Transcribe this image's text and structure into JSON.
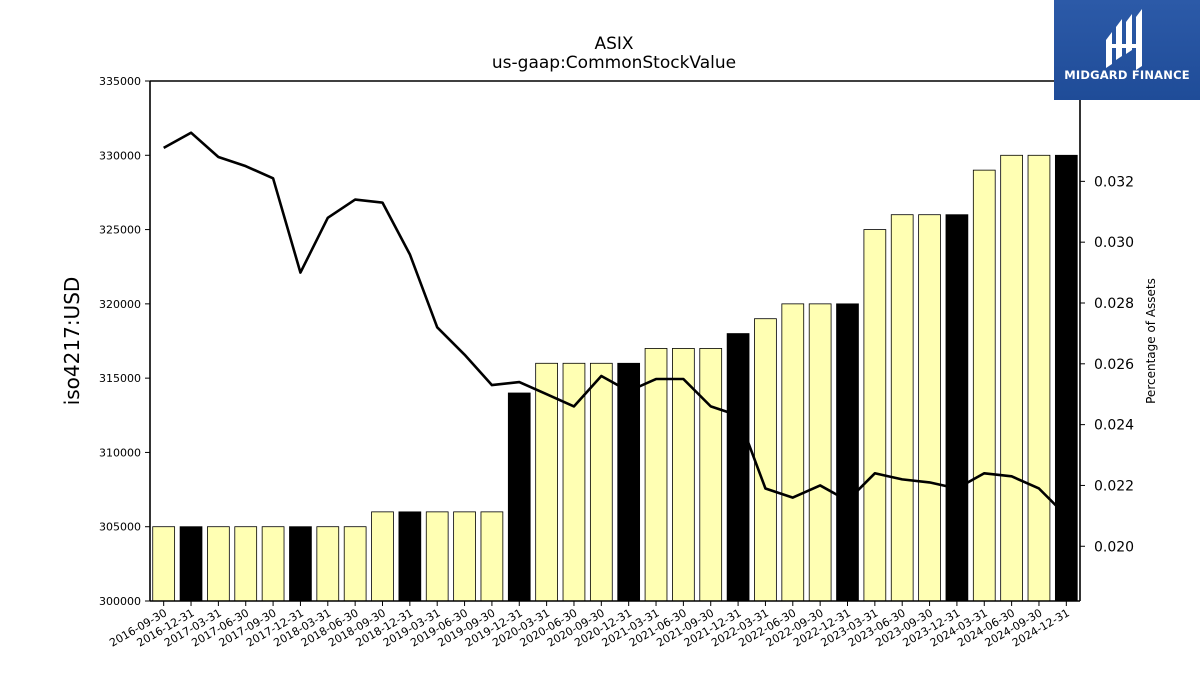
{
  "chart_data": {
    "type": "bar",
    "title": "ASIX",
    "subtitle": "us-gaap:CommonStockValue",
    "ylabel": "iso4217:USD",
    "y2label": "Percentage of Assets",
    "ylim": [
      300000,
      335000
    ],
    "y2lim": [
      0.0182,
      0.0353
    ],
    "yticks": [
      "300000",
      "305000",
      "310000",
      "315000",
      "320000",
      "325000",
      "330000",
      "335000"
    ],
    "y2ticks": [
      "0.020",
      "0.022",
      "0.024",
      "0.026",
      "0.028",
      "0.030",
      "0.032"
    ],
    "categories": [
      "2016-09-30",
      "2016-12-31",
      "2017-03-31",
      "2017-06-30",
      "2017-09-30",
      "2017-12-31",
      "2018-03-31",
      "2018-06-30",
      "2018-09-30",
      "2018-12-31",
      "2019-03-31",
      "2019-06-30",
      "2019-09-30",
      "2019-12-31",
      "2020-03-31",
      "2020-06-30",
      "2020-09-30",
      "2020-12-31",
      "2021-03-31",
      "2021-06-30",
      "2021-09-30",
      "2021-12-31",
      "2022-03-31",
      "2022-06-30",
      "2022-09-30",
      "2022-12-31",
      "2023-03-31",
      "2023-06-30",
      "2023-09-30",
      "2023-12-31",
      "2024-03-31",
      "2024-06-30",
      "2024-09-30",
      "2024-12-31"
    ],
    "values": [
      305000,
      305000,
      305000,
      305000,
      305000,
      305000,
      305000,
      305000,
      306000,
      306000,
      306000,
      306000,
      306000,
      314000,
      316000,
      316000,
      316000,
      316000,
      317000,
      317000,
      317000,
      318000,
      319000,
      320000,
      320000,
      320000,
      325000,
      326000,
      326000,
      326000,
      329000,
      330000,
      330000,
      330000
    ],
    "year_end": [
      false,
      true,
      false,
      false,
      false,
      true,
      false,
      false,
      false,
      true,
      false,
      false,
      false,
      true,
      false,
      false,
      false,
      true,
      false,
      false,
      false,
      true,
      false,
      false,
      false,
      true,
      false,
      false,
      false,
      true,
      false,
      false,
      false,
      true
    ],
    "line_series": {
      "values": [
        0.0331,
        0.0336,
        0.0328,
        0.0325,
        0.0321,
        0.029,
        0.0308,
        0.0314,
        0.0313,
        0.0296,
        0.0272,
        0.0263,
        0.0253,
        0.0254,
        0.025,
        0.0246,
        0.0256,
        0.0251,
        0.0255,
        0.0255,
        0.0246,
        0.0243,
        0.0219,
        0.0216,
        0.022,
        0.0215,
        0.0224,
        0.0222,
        0.0221,
        0.0219,
        0.0224,
        0.0223,
        0.0219,
        0.021
      ]
    },
    "colors": {
      "bar": "#ffffb3",
      "bar_year_end": "#000000",
      "bar_edge": "#000000",
      "line": "#000000"
    }
  },
  "logo": {
    "text": "MIDGARD FINANCE",
    "bg": "#2656a3"
  }
}
